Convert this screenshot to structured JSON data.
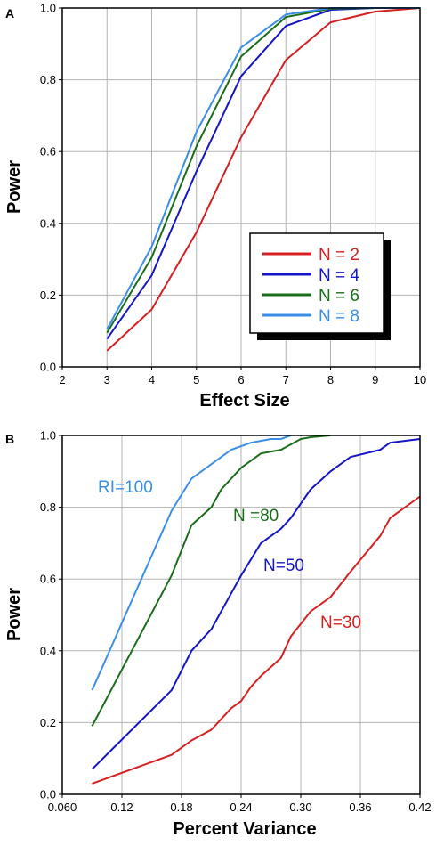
{
  "chart_data": [
    {
      "panel": "A",
      "type": "line",
      "xlabel": "Effect Size",
      "ylabel": "Power",
      "xlim": [
        2,
        10
      ],
      "ylim": [
        0,
        1
      ],
      "x_ticks": [
        "2",
        "3",
        "4",
        "5",
        "6",
        "7",
        "8",
        "9",
        "10"
      ],
      "y_ticks": [
        "0.0",
        "0.2",
        "0.4",
        "0.6",
        "0.8",
        "1.0"
      ],
      "grid": true,
      "legend_position": "lower-right",
      "series": [
        {
          "name": "N = 2",
          "color": "#d42020",
          "x": [
            3,
            4,
            5,
            6,
            7,
            8,
            9,
            10
          ],
          "y": [
            0.045,
            0.16,
            0.375,
            0.64,
            0.855,
            0.96,
            0.99,
            1.0
          ]
        },
        {
          "name": "N = 4",
          "color": "#1515c8",
          "x": [
            3,
            4,
            5,
            6,
            7,
            8,
            9,
            10
          ],
          "y": [
            0.078,
            0.255,
            0.545,
            0.81,
            0.95,
            0.995,
            1.0,
            1.0
          ]
        },
        {
          "name": "N = 6",
          "color": "#1a6e1a",
          "x": [
            3,
            4,
            5,
            6,
            7,
            8,
            9,
            10
          ],
          "y": [
            0.095,
            0.305,
            0.615,
            0.865,
            0.975,
            0.998,
            1.0,
            1.0
          ]
        },
        {
          "name": "N = 8",
          "color": "#3a8ee8",
          "x": [
            3,
            4,
            5,
            6,
            7,
            8,
            9,
            10
          ],
          "y": [
            0.105,
            0.335,
            0.655,
            0.89,
            0.982,
            1.0,
            1.0,
            1.0
          ]
        }
      ]
    },
    {
      "panel": "B",
      "type": "line",
      "xlabel": "Percent Variance",
      "ylabel": "Power",
      "xlim": [
        0.06,
        0.42
      ],
      "ylim": [
        0,
        1
      ],
      "x_ticks": [
        "0.060",
        "0.12",
        "0.18",
        "0.24",
        "0.30",
        "0.36",
        "0.42"
      ],
      "y_ticks": [
        "0.0",
        "0.2",
        "0.4",
        "0.6",
        "0.8",
        "1.0"
      ],
      "grid": true,
      "series": [
        {
          "name": "RI=100",
          "color": "#3a8ee8",
          "x": [
            0.09,
            0.17,
            0.19,
            0.23,
            0.25,
            0.27,
            0.28,
            0.29
          ],
          "y": [
            0.29,
            0.79,
            0.88,
            0.96,
            0.98,
            0.99,
            0.99,
            1.0
          ]
        },
        {
          "name": "N =80",
          "color": "#1a6e1a",
          "x": [
            0.09,
            0.17,
            0.19,
            0.21,
            0.22,
            0.24,
            0.26,
            0.28,
            0.3,
            0.31,
            0.33
          ],
          "y": [
            0.19,
            0.61,
            0.75,
            0.8,
            0.85,
            0.91,
            0.95,
            0.96,
            0.99,
            0.995,
            1.0
          ]
        },
        {
          "name": "N=50",
          "color": "#1515c8",
          "x": [
            0.09,
            0.17,
            0.19,
            0.21,
            0.24,
            0.26,
            0.28,
            0.29,
            0.31,
            0.33,
            0.35,
            0.38,
            0.39,
            0.42
          ],
          "y": [
            0.07,
            0.29,
            0.4,
            0.46,
            0.61,
            0.7,
            0.74,
            0.77,
            0.85,
            0.9,
            0.94,
            0.96,
            0.98,
            0.99
          ]
        },
        {
          "name": "N=30",
          "color": "#d42020",
          "x": [
            0.09,
            0.17,
            0.19,
            0.21,
            0.23,
            0.24,
            0.25,
            0.26,
            0.28,
            0.29,
            0.31,
            0.33,
            0.35,
            0.38,
            0.39,
            0.42
          ],
          "y": [
            0.03,
            0.11,
            0.15,
            0.18,
            0.24,
            0.26,
            0.3,
            0.33,
            0.38,
            0.44,
            0.51,
            0.55,
            0.62,
            0.72,
            0.77,
            0.83
          ]
        }
      ]
    }
  ]
}
